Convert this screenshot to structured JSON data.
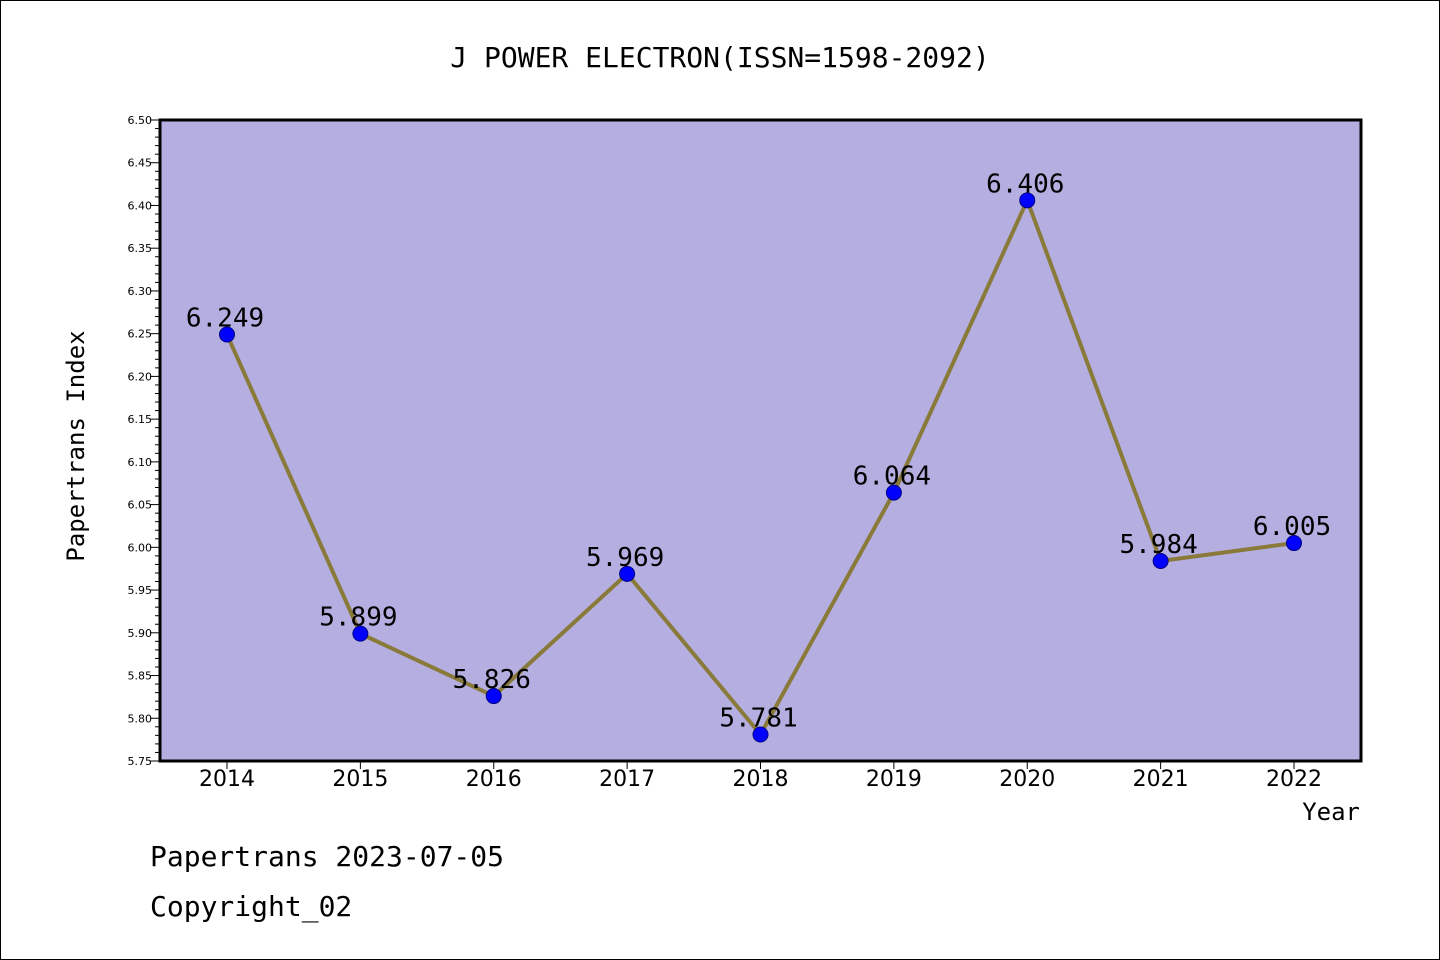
{
  "colors": {
    "plot_background": "#b4aee1",
    "line": "#8a7a3a",
    "marker_fill": "#0000ff",
    "marker_stroke": "#000080",
    "frame": "#000000",
    "text": "#000000"
  },
  "footer": {
    "date_line": "Papertrans 2023-07-05",
    "copyright_line": "Copyright_02"
  },
  "chart_data": {
    "type": "line",
    "title": "J POWER ELECTRON(ISSN=1598-2092)",
    "xlabel": "Year",
    "ylabel": "Papertrans Index",
    "categories": [
      "2014",
      "2015",
      "2016",
      "2017",
      "2018",
      "2019",
      "2020",
      "2021",
      "2022"
    ],
    "series": [
      {
        "values": [
          6.249,
          5.899,
          5.826,
          5.969,
          5.781,
          6.064,
          6.406,
          5.984,
          6.005
        ],
        "labels": [
          "6.249",
          "5.899",
          "5.826",
          "5.969",
          "5.781",
          "6.064",
          "6.406",
          "5.984",
          "6.005"
        ]
      }
    ],
    "ylim": [
      5.75,
      6.5
    ],
    "yticks": [
      "5.75",
      "5.80",
      "5.85",
      "5.90",
      "5.95",
      "6.00",
      "6.05",
      "6.10",
      "6.15",
      "6.20",
      "6.25",
      "6.30",
      "6.35",
      "6.40",
      "6.45",
      "6.50"
    ],
    "y_minor_ticks_per_major": 5,
    "grid": false,
    "legend": "none",
    "marker": "circle"
  }
}
